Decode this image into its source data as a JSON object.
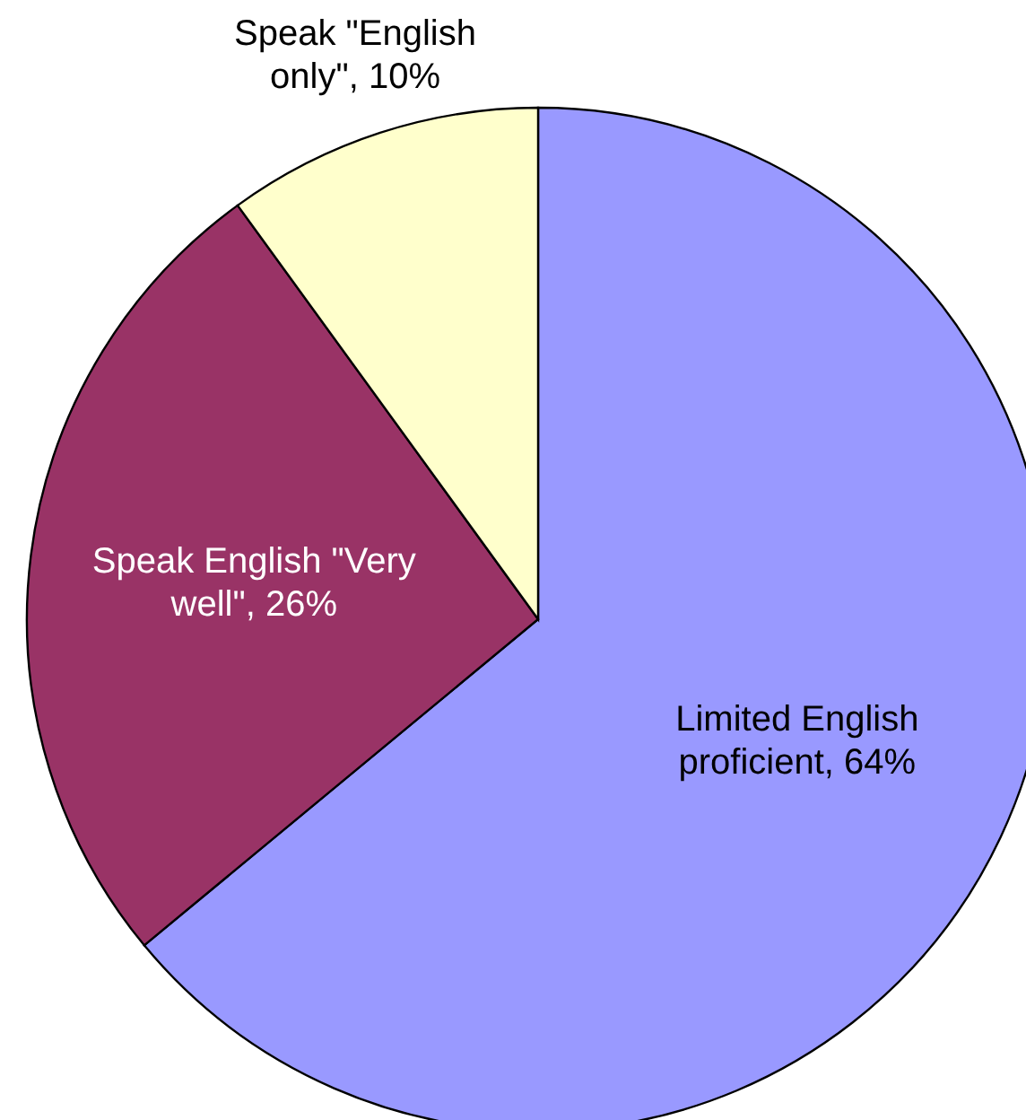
{
  "chart_data": {
    "type": "pie",
    "categories": [
      "Limited English proficient",
      "Speak English \"Very well\"",
      "Speak \"English only\""
    ],
    "values": [
      64,
      26,
      10
    ],
    "colors": [
      "#9999ff",
      "#993366",
      "#ffffcc"
    ],
    "value_labels": [
      ", 64%",
      ", 26%",
      ", 10%"
    ]
  }
}
